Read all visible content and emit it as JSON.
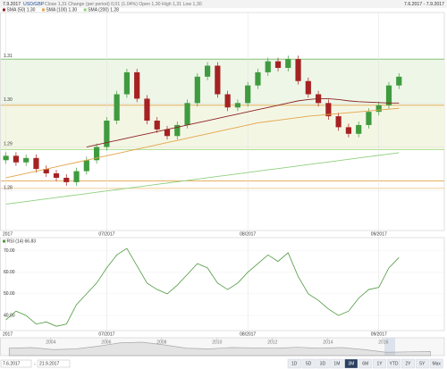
{
  "header": {
    "date": "7.9.2017",
    "symbol": "USD/GBP",
    "info": "Close 1,31 Change (per period) 0,01 (1.04%) Open 1,30 High 1,31 Low 1,30",
    "range": "7.6.2017 - 7.9.2017"
  },
  "chart_data": [
    {
      "type": "candlestick",
      "open": [
        1.287,
        1.288,
        1.2865,
        1.2875,
        1.285,
        1.284,
        1.283,
        1.282,
        1.2845,
        1.287,
        1.29,
        1.296,
        1.302,
        1.307,
        1.301,
        1.296,
        1.294,
        1.2925,
        1.295,
        1.3,
        1.306,
        1.3085,
        1.302,
        1.299,
        1.3,
        1.304,
        1.307,
        1.3095,
        1.308,
        1.31,
        1.305,
        1.302,
        1.3,
        1.297,
        1.2945,
        1.293,
        1.295,
        1.298,
        1.2995,
        1.304
      ],
      "high": [
        1.2888,
        1.2888,
        1.2883,
        1.2883,
        1.2858,
        1.2848,
        1.2838,
        1.2853,
        1.2878,
        1.2908,
        1.2968,
        1.3028,
        1.3078,
        1.3078,
        1.3018,
        1.2968,
        1.2948,
        1.2958,
        1.3008,
        1.3068,
        1.3093,
        1.3093,
        1.3028,
        1.3008,
        1.3048,
        1.3078,
        1.3103,
        1.3103,
        1.3108,
        1.3108,
        1.3058,
        1.3028,
        1.3008,
        1.2978,
        1.2953,
        1.2958,
        1.2988,
        1.3003,
        1.3048,
        1.3068
      ],
      "low": [
        1.2862,
        1.2857,
        1.2857,
        1.2842,
        1.2832,
        1.2822,
        1.2812,
        1.2812,
        1.2837,
        1.2862,
        1.2892,
        1.2952,
        1.3012,
        1.3002,
        1.2952,
        1.2932,
        1.2917,
        1.2917,
        1.2942,
        1.2992,
        1.3052,
        1.3012,
        1.2982,
        1.2982,
        1.2992,
        1.3032,
        1.3062,
        1.3072,
        1.3072,
        1.3042,
        1.3012,
        1.2992,
        1.2962,
        1.2937,
        1.2922,
        1.2922,
        1.2942,
        1.2972,
        1.2987,
        1.3032
      ],
      "close": [
        1.288,
        1.2865,
        1.2875,
        1.285,
        1.284,
        1.283,
        1.282,
        1.2845,
        1.287,
        1.29,
        1.296,
        1.302,
        1.307,
        1.301,
        1.296,
        1.294,
        1.2925,
        1.295,
        1.3,
        1.306,
        1.3085,
        1.302,
        1.299,
        1.3,
        1.304,
        1.307,
        1.3095,
        1.308,
        1.31,
        1.305,
        1.302,
        1.3,
        1.297,
        1.2945,
        1.293,
        1.295,
        1.298,
        1.2995,
        1.304,
        1.306
      ],
      "colors": {
        "up": "#3f9b3f",
        "down": "#a52222"
      },
      "xlim": [
        -0.5,
        43.5
      ],
      "xticks": [
        {
          "value": 0,
          "label": "2017"
        },
        {
          "value": 10,
          "label": "07/2017"
        },
        {
          "value": 24,
          "label": "08/2017"
        },
        {
          "value": 37,
          "label": "09/2017"
        }
      ],
      "ylim": [
        1.271,
        1.3206
      ],
      "yticks": [
        1.31,
        {
          "value": 1.3,
          "label": "1.30"
        },
        1.29,
        1.28
      ],
      "series": [
        {
          "name": "SMA (50) 1.30",
          "color": "#8b2323",
          "values": [
            null,
            null,
            null,
            null,
            null,
            null,
            null,
            null,
            1.29,
            1.2905,
            1.291,
            1.2915,
            1.292,
            1.2925,
            1.293,
            1.2935,
            1.294,
            1.2945,
            1.295,
            1.2955,
            1.296,
            1.2965,
            1.297,
            1.2975,
            1.298,
            1.2985,
            1.299,
            1.2995,
            1.3,
            1.3005,
            1.3008,
            1.301,
            1.301,
            1.3008,
            1.3005,
            1.3003,
            1.3002,
            1.3001,
            1.3,
            1.3
          ]
        },
        {
          "name": "SMA (100) 1.30",
          "color": "#e3a54a",
          "values": [
            1.283,
            1.2835,
            1.284,
            1.2845,
            1.285,
            1.2855,
            1.286,
            1.2865,
            1.287,
            1.2875,
            1.288,
            1.2885,
            1.289,
            1.2895,
            1.29,
            1.2905,
            1.291,
            1.2915,
            1.292,
            1.2925,
            1.293,
            1.2935,
            1.294,
            1.2945,
            1.295,
            1.2955,
            1.2958,
            1.2961,
            1.2964,
            1.2967,
            1.297,
            1.2972,
            1.2974,
            1.2976,
            1.2978,
            1.298,
            1.2982,
            1.2984,
            1.2986,
            1.2988
          ]
        },
        {
          "name": "SMA (200) 1.28",
          "color": "#8fd07e",
          "values": [
            1.277,
            1.2773,
            1.2776,
            1.2779,
            1.2782,
            1.2785,
            1.2788,
            1.2791,
            1.2794,
            1.2797,
            1.28,
            1.2803,
            1.2806,
            1.2809,
            1.2812,
            1.2815,
            1.2818,
            1.2821,
            1.2824,
            1.2827,
            1.283,
            1.2833,
            1.2836,
            1.2839,
            1.2842,
            1.2845,
            1.2848,
            1.2851,
            1.2854,
            1.2857,
            1.286,
            1.2863,
            1.2866,
            1.2869,
            1.2872,
            1.2875,
            1.2878,
            1.2881,
            1.2884,
            1.2887
          ]
        }
      ],
      "bands": [
        {
          "from": 1.31,
          "to": 1.2995,
          "color": "#eef6e8"
        },
        {
          "from": 1.2995,
          "to": 1.2894,
          "color": "#f4f6e4"
        }
      ],
      "levels": [
        {
          "value": 1.31,
          "color": "#7cc36a"
        },
        {
          "value": 1.2995,
          "color": "#e3a54a"
        },
        {
          "value": 1.2894,
          "color": "#a6d98f"
        },
        {
          "value": 1.2823,
          "color": "#e3a54a"
        },
        {
          "value": 1.2806,
          "color": "#f0c58a"
        }
      ]
    },
    {
      "type": "line",
      "xlim": [
        -0.5,
        43.5
      ],
      "ylim": [
        33,
        76
      ],
      "yticks": [
        {
          "value": 70,
          "label": "70.00"
        },
        {
          "value": 60,
          "label": "60.00"
        },
        {
          "value": 50,
          "label": "50.00"
        },
        {
          "value": 40,
          "label": "40.00"
        }
      ],
      "series": [
        {
          "name": "RSI (14) 66.83",
          "color": "#4f9a3f",
          "values": [
            38,
            42,
            40,
            36,
            37,
            35,
            36,
            45,
            50,
            55,
            62,
            68,
            71,
            63,
            55,
            52,
            50,
            54,
            59,
            64,
            62,
            55,
            52,
            55,
            60,
            64,
            68,
            65,
            69,
            58,
            50,
            47,
            43,
            40,
            42,
            48,
            52,
            53,
            62,
            66.83
          ]
        }
      ]
    },
    {
      "type": "area",
      "x": [
        2002.5,
        2003.3,
        2004.1,
        2004.9,
        2005.7,
        2006.5,
        2007.3,
        2008.1,
        2008.9,
        2009.7,
        2010.5,
        2011.3,
        2012.1,
        2012.9,
        2013.7,
        2014.5,
        2015.3,
        2016.1,
        2016.9,
        2017.7
      ],
      "values": [
        1.55,
        1.6,
        1.45,
        1.5,
        1.7,
        1.95,
        2.0,
        1.8,
        1.55,
        1.5,
        1.6,
        1.58,
        1.55,
        1.62,
        1.55,
        1.6,
        1.45,
        1.25,
        1.28,
        1.3
      ],
      "xlim": [
        2002.2,
        2018.2
      ],
      "ylim": [
        1.0,
        2.2
      ],
      "xticks": [
        2004,
        2006,
        2008,
        2010,
        2012,
        2014,
        2016
      ],
      "color": "#a9a9a9"
    }
  ],
  "controls": {
    "from": "7.6.2017",
    "separator": "-",
    "to": "21.9.2017",
    "buttons": [
      "1D",
      "5D",
      "3D",
      "1M",
      "3M",
      "6M",
      "1Y",
      "YTD",
      "2Y",
      "5Y",
      "Max"
    ],
    "active_button": 4
  }
}
